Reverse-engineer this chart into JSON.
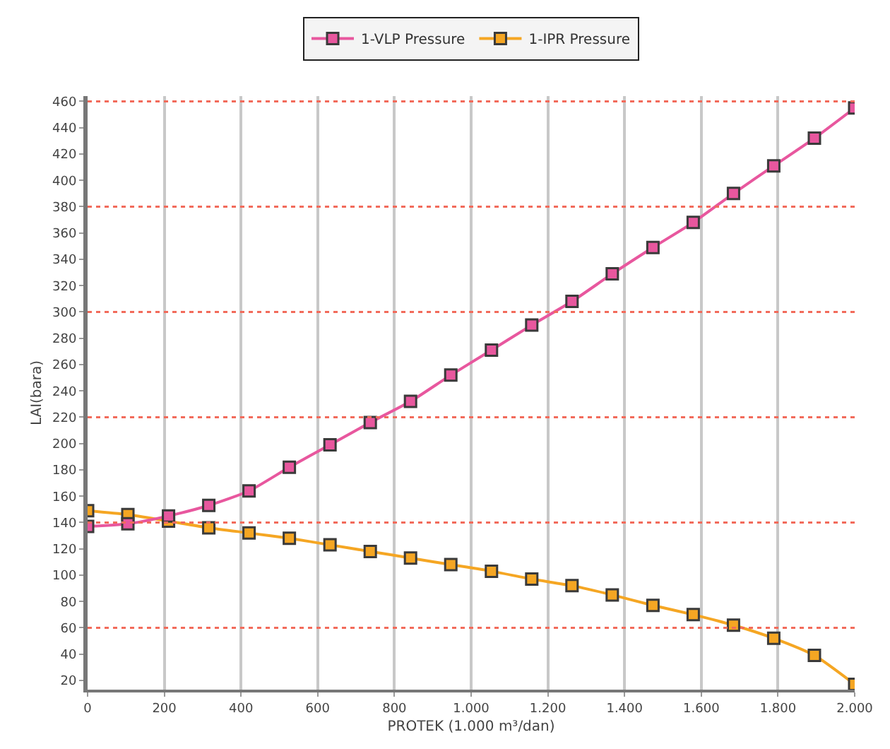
{
  "chart_data": {
    "type": "line",
    "xlabel": "PROTEK (1.000 m³/dan)",
    "ylabel": "LAI(bara)",
    "x": [
      0,
      105,
      211,
      316,
      421,
      526,
      632,
      737,
      842,
      947,
      1053,
      1158,
      1263,
      1368,
      1474,
      1579,
      1684,
      1789,
      1895,
      2000
    ],
    "series": [
      {
        "name": "1-VLP Pressure",
        "color": "#e8579e",
        "values": [
          137,
          139,
          145,
          153,
          164,
          182,
          199,
          216,
          232,
          252,
          271,
          290,
          308,
          329,
          349,
          368,
          390,
          411,
          432,
          455
        ]
      },
      {
        "name": "1-IPR Pressure",
        "color": "#f5a623",
        "values": [
          149,
          146,
          141,
          136,
          132,
          128,
          123,
          118,
          113,
          108,
          103,
          97,
          92,
          85,
          77,
          70,
          62,
          52,
          39,
          17
        ]
      }
    ],
    "xlim": [
      0,
      2000
    ],
    "xticks": [
      0,
      200,
      400,
      600,
      800,
      {
        "value": 1000,
        "label": "1.000"
      },
      {
        "value": 1200,
        "label": "1.200"
      },
      {
        "value": 1400,
        "label": "1.400"
      },
      {
        "value": 1600,
        "label": "1.600"
      },
      {
        "value": 1800,
        "label": "1.800"
      },
      {
        "value": 2000,
        "label": "2.000"
      }
    ],
    "ylim": [
      13,
      464
    ],
    "yticks": [
      20,
      40,
      60,
      80,
      100,
      120,
      140,
      160,
      180,
      200,
      220,
      240,
      260,
      280,
      300,
      320,
      340,
      360,
      380,
      400,
      420,
      440,
      460
    ],
    "ref_lines": [
      {
        "axis": "y",
        "value": 60,
        "color": "#f26b5b",
        "line_style": "dotted"
      },
      {
        "axis": "y",
        "value": 140,
        "color": "#f26b5b",
        "line_style": "dotted"
      },
      {
        "axis": "y",
        "value": 220,
        "color": "#f26b5b",
        "line_style": "dotted"
      },
      {
        "axis": "y",
        "value": 300,
        "color": "#f26b5b",
        "line_style": "dotted"
      },
      {
        "axis": "y",
        "value": 380,
        "color": "#f26b5b",
        "line_style": "dotted"
      },
      {
        "axis": "y",
        "value": 460,
        "color": "#f26b5b",
        "line_style": "dotted"
      }
    ],
    "grid": "x",
    "legend": "top",
    "marker": "square",
    "line_style": "solid"
  }
}
